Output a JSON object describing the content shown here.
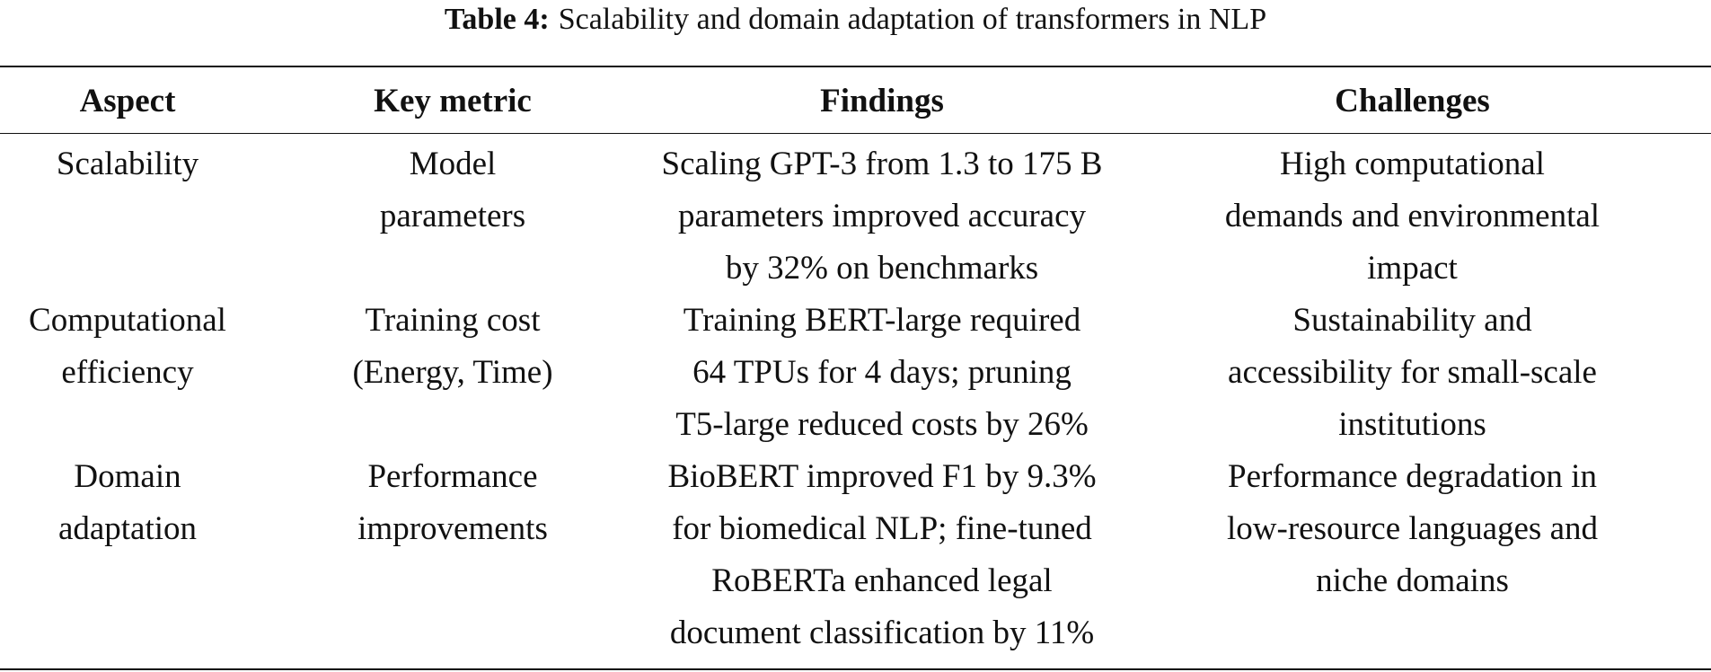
{
  "caption": {
    "label": "Table 4:",
    "text": "Scalability and domain adaptation of transformers in NLP"
  },
  "table": {
    "headers": [
      "Aspect",
      "Key metric",
      "Findings",
      "Challenges"
    ],
    "rows": [
      [
        "Scalability",
        "Model\nparameters",
        "Scaling GPT-3 from 1.3 to 175 B\nparameters improved accuracy\nby 32% on benchmarks",
        "High computational\ndemands and environmental\nimpact"
      ],
      [
        "Computational\nefficiency",
        "Training cost\n(Energy, Time)",
        "Training BERT-large required\n64 TPUs for 4 days; pruning\nT5-large reduced costs by 26%",
        "Sustainability and\naccessibility for small-scale\ninstitutions"
      ],
      [
        "Domain\nadaptation",
        "Performance\nimprovements",
        "BioBERT improved F1 by 9.3%\nfor biomedical NLP; fine-tuned\nRoBERTa enhanced legal\ndocument classification by 11%",
        "Performance degradation in\nlow-resource languages and\nniche domains"
      ]
    ]
  }
}
